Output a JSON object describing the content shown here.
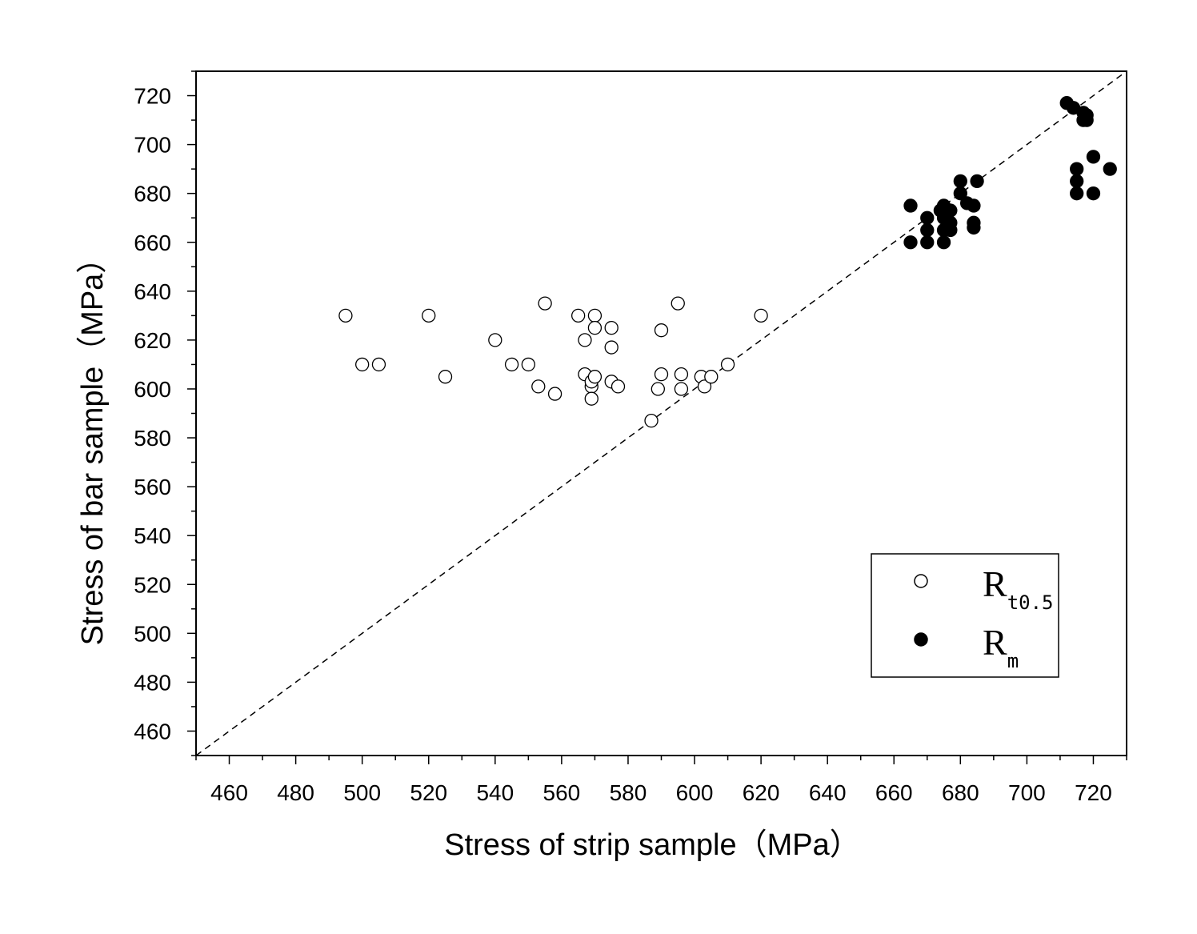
{
  "chart_data": {
    "type": "scatter",
    "xlabel": "Stress of strip sample（MPa）",
    "ylabel": "Stress of bar sample（MPa）",
    "xlim": [
      450,
      730
    ],
    "ylim": [
      450,
      730
    ],
    "x_ticks": [
      460,
      480,
      500,
      520,
      540,
      560,
      580,
      600,
      620,
      640,
      660,
      680,
      700,
      720
    ],
    "y_ticks": [
      460,
      480,
      500,
      520,
      540,
      560,
      580,
      600,
      620,
      640,
      660,
      680,
      700,
      720
    ],
    "grid": false,
    "legend_position": "bottom-right",
    "reference_line": {
      "style": "dashed",
      "from": [
        450,
        450
      ],
      "to": [
        730,
        730
      ]
    },
    "series": [
      {
        "name_main": "R",
        "name_sub": "t0.5",
        "marker": "open-circle",
        "points": [
          [
            495,
            630
          ],
          [
            500,
            610
          ],
          [
            505,
            610
          ],
          [
            520,
            630
          ],
          [
            525,
            605
          ],
          [
            540,
            620
          ],
          [
            545,
            610
          ],
          [
            550,
            610
          ],
          [
            553,
            601
          ],
          [
            555,
            635
          ],
          [
            558,
            598
          ],
          [
            565,
            630
          ],
          [
            567,
            620
          ],
          [
            567,
            606
          ],
          [
            569,
            601
          ],
          [
            569,
            596
          ],
          [
            569,
            603
          ],
          [
            570,
            630
          ],
          [
            570,
            625
          ],
          [
            570,
            605
          ],
          [
            575,
            625
          ],
          [
            575,
            617
          ],
          [
            575,
            603
          ],
          [
            577,
            601
          ],
          [
            587,
            587
          ],
          [
            589,
            600
          ],
          [
            590,
            624
          ],
          [
            590,
            606
          ],
          [
            595,
            635
          ],
          [
            596,
            606
          ],
          [
            596,
            600
          ],
          [
            602,
            605
          ],
          [
            603,
            601
          ],
          [
            605,
            605
          ],
          [
            610,
            610
          ],
          [
            620,
            630
          ]
        ]
      },
      {
        "name_main": "R",
        "name_sub": "m",
        "marker": "filled-circle",
        "points": [
          [
            665,
            675
          ],
          [
            665,
            660
          ],
          [
            670,
            670
          ],
          [
            670,
            665
          ],
          [
            670,
            660
          ],
          [
            674,
            673
          ],
          [
            675,
            675
          ],
          [
            675,
            670
          ],
          [
            675,
            665
          ],
          [
            675,
            660
          ],
          [
            677,
            673
          ],
          [
            677,
            668
          ],
          [
            677,
            665
          ],
          [
            680,
            685
          ],
          [
            680,
            680
          ],
          [
            682,
            676
          ],
          [
            684,
            675
          ],
          [
            684,
            668
          ],
          [
            684,
            666
          ],
          [
            685,
            685
          ],
          [
            712,
            717
          ],
          [
            714,
            715
          ],
          [
            717,
            713
          ],
          [
            717,
            710
          ],
          [
            718,
            712
          ],
          [
            718,
            710
          ],
          [
            715,
            690
          ],
          [
            715,
            685
          ],
          [
            715,
            680
          ],
          [
            720,
            695
          ],
          [
            720,
            680
          ],
          [
            725,
            690
          ]
        ]
      }
    ]
  }
}
